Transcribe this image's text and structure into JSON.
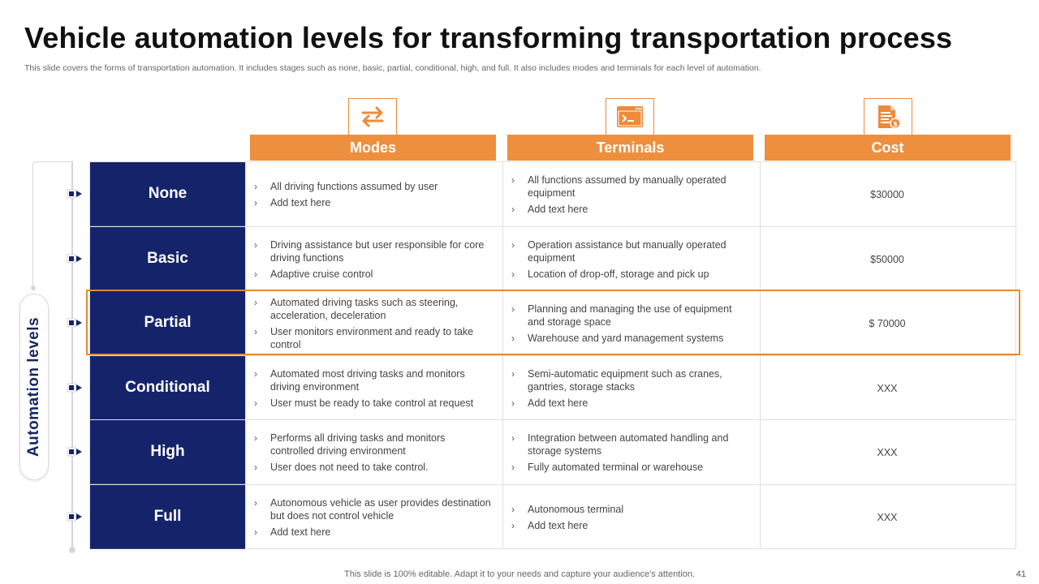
{
  "slide": {
    "title": "Vehicle automation levels for transforming transportation process",
    "subtitle": "This slide covers the forms of transportation automation. It includes stages such as none, basic, partial, conditional, high, and full. It also includes modes and terminals for each level of automation.",
    "footer": "This slide is 100% editable. Adapt it to your needs and capture your audience's attention.",
    "page_number": "41"
  },
  "colors": {
    "accent": "#ee8f3e",
    "navy": "#15246a",
    "highlight": "#e08a34"
  },
  "icons": {
    "modes": "exchange-arrows-icon",
    "terminals": "terminal-window-icon",
    "cost": "invoice-document-icon"
  },
  "headers": {
    "modes": "Modes",
    "terminals": "Terminals",
    "cost": "Cost"
  },
  "side_label": "Automation levels",
  "rows": [
    {
      "level": "None",
      "modes": [
        "All driving  functions assumed by user",
        "Add text here"
      ],
      "terminals": [
        "All functions assumed by manually operated equipment",
        "Add text here"
      ],
      "cost": "$30000"
    },
    {
      "level": "Basic",
      "modes": [
        "Driving  assistance but user responsible for core driving  functions",
        "Adaptive  cruise control"
      ],
      "terminals": [
        "Operation assistance but manually operated equipment",
        "Location of drop-off,  storage and pick up"
      ],
      "cost": "$50000"
    },
    {
      "level": "Partial",
      "modes": [
        "Automated driving  tasks such as steering, acceleration, deceleration",
        "User monitors environment  and ready to take control"
      ],
      "terminals": [
        "Planning and managing the use of equipment and storage space",
        "Warehouse and yard management systems"
      ],
      "cost": "$ 70000"
    },
    {
      "level": "Conditional",
      "modes": [
        "Automated most driving  tasks and monitors driving  environment",
        "User must be ready to take control at request"
      ],
      "terminals": [
        "Semi-automatic equipment such as cranes, gantries, storage stacks",
        "Add text here"
      ],
      "cost": "XXX"
    },
    {
      "level": "High",
      "modes": [
        "Performs  all driving tasks and monitors controlled driving  environment",
        "User does not need to take control."
      ],
      "terminals": [
        "Integration  between automated handling and storage systems",
        "Fully automated terminal or warehouse"
      ],
      "cost": "XXX"
    },
    {
      "level": "Full",
      "modes": [
        "Autonomous vehicle  as user provides destination but does not control vehicle",
        "Add text here"
      ],
      "terminals": [
        "Autonomous terminal",
        "Add text here"
      ],
      "cost": "XXX"
    }
  ]
}
